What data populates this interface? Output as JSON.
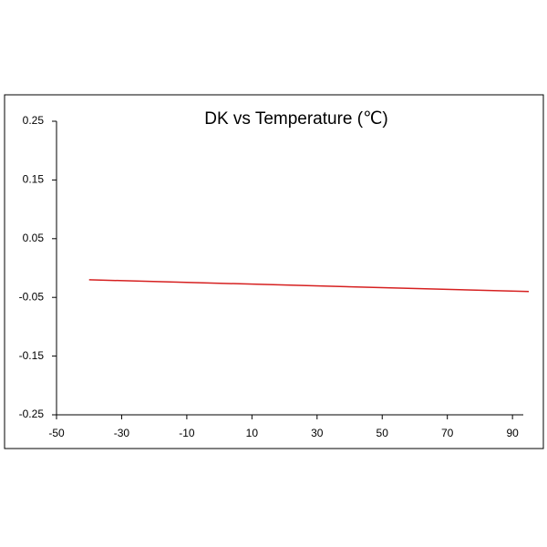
{
  "chart_data": {
    "type": "line",
    "title": "DK vs Temperature (℃)",
    "x": [
      -40,
      95
    ],
    "series": [
      {
        "name": "DK",
        "color": "#d62020",
        "values": [
          -0.02,
          -0.04
        ]
      }
    ],
    "xlim": [
      -50,
      95
    ],
    "xticks": [
      -50,
      -30,
      -10,
      10,
      30,
      50,
      70,
      90
    ],
    "ylim": [
      -0.25,
      0.25
    ],
    "yticks": [
      0.25,
      0.15,
      0.05,
      -0.05,
      -0.15,
      -0.25
    ]
  }
}
